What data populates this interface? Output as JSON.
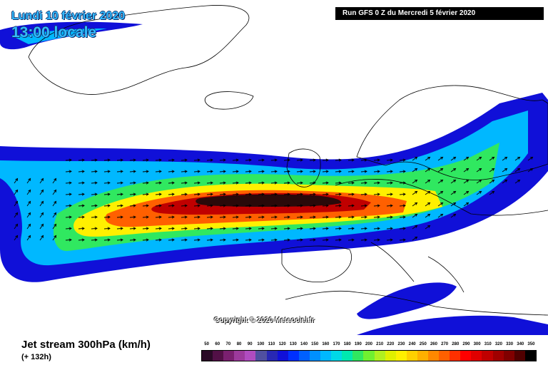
{
  "header": {
    "date_label": "Lundi 10 février 2020",
    "time_label": "13:00 locale",
    "run_label": "Run GFS 0 Z du Mercredi 5 février 2020"
  },
  "copyright": "Copyright © 2020 Meteociel.fr",
  "footer": {
    "product_label": "Jet stream 300hPa (km/h)",
    "lead_time": "(+ 132h)"
  },
  "legend": {
    "ticks": [
      "50",
      "60",
      "70",
      "80",
      "90",
      "100",
      "110",
      "120",
      "130",
      "140",
      "150",
      "160",
      "170",
      "180",
      "190",
      "200",
      "210",
      "220",
      "230",
      "240",
      "250",
      "260",
      "270",
      "280",
      "290",
      "300",
      "310",
      "320",
      "330",
      "340",
      "350"
    ],
    "colors": [
      "#2a0a26",
      "#521046",
      "#7a2070",
      "#9c3a9c",
      "#b04cc0",
      "#5050a0",
      "#2828b4",
      "#1010d8",
      "#0030ff",
      "#0060ff",
      "#0090ff",
      "#00b8ff",
      "#00d8e8",
      "#00e8b0",
      "#30e860",
      "#70f030",
      "#b0f020",
      "#e0f000",
      "#fff000",
      "#ffd000",
      "#ffb000",
      "#ff8800",
      "#ff6000",
      "#ff3000",
      "#ff0000",
      "#e00000",
      "#c00000",
      "#a00000",
      "#800000",
      "#500000",
      "#000000"
    ]
  },
  "map": {
    "sea_color": "#ffffff",
    "land_outline_color": "#000000",
    "jet_bands": [
      "#1010d8",
      "#00b8ff",
      "#30e860",
      "#fff000",
      "#ff6000",
      "#c00000",
      "#2a0a0a"
    ]
  }
}
